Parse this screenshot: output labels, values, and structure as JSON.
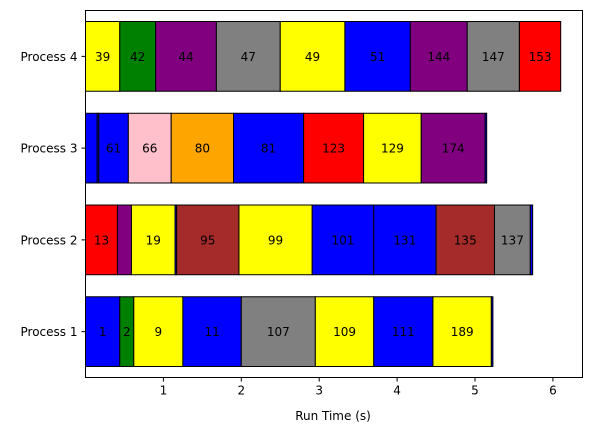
{
  "chart_data": {
    "type": "bar",
    "orientation": "horizontal-stacked",
    "xlabel": "Run Time (s)",
    "ylabel": "",
    "title": "",
    "xlim": [
      0,
      6.38
    ],
    "xticks": [
      1,
      2,
      3,
      4,
      5,
      6
    ],
    "grid": false,
    "categories": [
      "Process 1",
      "Process 2",
      "Process 3",
      "Process 4"
    ],
    "colors": {
      "blue": "#0000ff",
      "green": "#008000",
      "yellow": "#ffff00",
      "gray": "#808080",
      "red": "#ff0000",
      "purple": "#800080",
      "brown": "#a52a2a",
      "pink": "#ffc0cb",
      "orange": "#ffa500"
    },
    "bars": [
      {
        "process": "Process 1",
        "segments": [
          {
            "label": "1",
            "duration": 0.44,
            "color": "blue"
          },
          {
            "label": "2",
            "duration": 0.18,
            "color": "green"
          },
          {
            "label": "9",
            "duration": 0.63,
            "color": "yellow"
          },
          {
            "label": "11",
            "duration": 0.75,
            "color": "blue"
          },
          {
            "label": "107",
            "duration": 0.95,
            "color": "gray"
          },
          {
            "label": "109",
            "duration": 0.75,
            "color": "yellow"
          },
          {
            "label": "111",
            "duration": 0.76,
            "color": "blue"
          },
          {
            "label": "189",
            "duration": 0.75,
            "color": "yellow"
          },
          {
            "label": "",
            "duration": 0.02,
            "color": "blue"
          }
        ]
      },
      {
        "process": "Process 2",
        "segments": [
          {
            "label": "13",
            "duration": 0.41,
            "color": "red"
          },
          {
            "label": "",
            "duration": 0.18,
            "color": "purple"
          },
          {
            "label": "19",
            "duration": 0.56,
            "color": "yellow"
          },
          {
            "label": "",
            "duration": 0.02,
            "color": "blue"
          },
          {
            "label": "95",
            "duration": 0.8,
            "color": "brown"
          },
          {
            "label": "99",
            "duration": 0.94,
            "color": "yellow"
          },
          {
            "label": "101",
            "duration": 0.79,
            "color": "blue"
          },
          {
            "label": "131",
            "duration": 0.8,
            "color": "blue"
          },
          {
            "label": "135",
            "duration": 0.75,
            "color": "brown"
          },
          {
            "label": "137",
            "duration": 0.46,
            "color": "gray"
          },
          {
            "label": "",
            "duration": 0.03,
            "color": "blue"
          }
        ]
      },
      {
        "process": "Process 3",
        "segments": [
          {
            "label": "",
            "duration": 0.15,
            "color": "blue"
          },
          {
            "label": "",
            "duration": 0.02,
            "color": "blue"
          },
          {
            "label": "61",
            "duration": 0.38,
            "color": "blue"
          },
          {
            "label": "66",
            "duration": 0.55,
            "color": "pink"
          },
          {
            "label": "80",
            "duration": 0.8,
            "color": "orange"
          },
          {
            "label": "81",
            "duration": 0.9,
            "color": "blue"
          },
          {
            "label": "123",
            "duration": 0.77,
            "color": "red"
          },
          {
            "label": "129",
            "duration": 0.74,
            "color": "yellow"
          },
          {
            "label": "174",
            "duration": 0.82,
            "color": "purple"
          },
          {
            "label": "",
            "duration": 0.02,
            "color": "blue"
          }
        ]
      },
      {
        "process": "Process 4",
        "segments": [
          {
            "label": "39",
            "duration": 0.44,
            "color": "yellow"
          },
          {
            "label": "42",
            "duration": 0.46,
            "color": "green"
          },
          {
            "label": "44",
            "duration": 0.78,
            "color": "purple"
          },
          {
            "label": "47",
            "duration": 0.82,
            "color": "gray"
          },
          {
            "label": "49",
            "duration": 0.83,
            "color": "yellow"
          },
          {
            "label": "51",
            "duration": 0.84,
            "color": "blue"
          },
          {
            "label": "144",
            "duration": 0.73,
            "color": "purple"
          },
          {
            "label": "147",
            "duration": 0.67,
            "color": "gray"
          },
          {
            "label": "153",
            "duration": 0.53,
            "color": "red"
          }
        ]
      }
    ]
  }
}
